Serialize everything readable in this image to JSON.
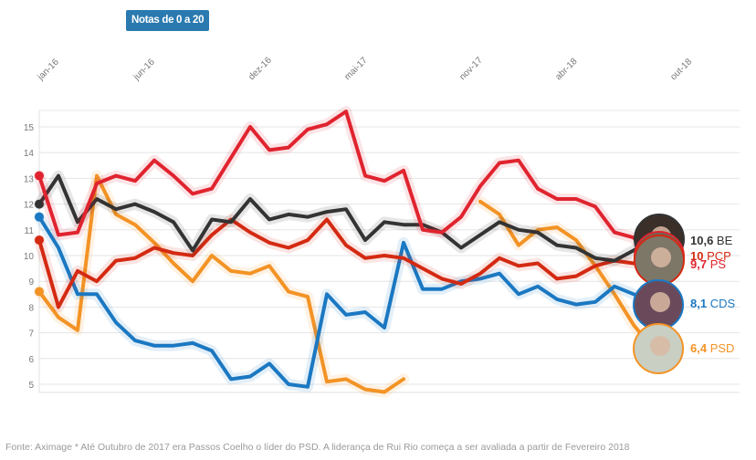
{
  "badge": {
    "label": "Notas de 0 a 20"
  },
  "footer": {
    "text": "Fonte: Aximage * Até Outubro de 2017 era Passos Coelho o líder do PSD. A liderança de Rui Rio começa a ser avaliada a partir de Fevereiro 2018"
  },
  "chart_data": {
    "type": "line",
    "title": "Notas de 0 a 20",
    "xlabel": "",
    "ylabel": "",
    "ylim": [
      5,
      15
    ],
    "yticks": [
      5,
      6,
      7,
      8,
      9,
      10,
      11,
      12,
      13,
      14,
      15
    ],
    "grid": true,
    "xtick_labels": [
      {
        "label": "jan-16",
        "index": 0
      },
      {
        "label": "jun-16",
        "index": 5
      },
      {
        "label": "dez-16",
        "index": 11
      },
      {
        "label": "mai-17",
        "index": 16
      },
      {
        "label": "nov-17",
        "index": 22
      },
      {
        "label": "abr-18",
        "index": 27
      },
      {
        "label": "out-18",
        "index": 33
      }
    ],
    "n_points": 33,
    "series": [
      {
        "name": "PS",
        "color": "#e0242f",
        "end_value": "9,7",
        "values": [
          13.1,
          10.8,
          10.9,
          12.8,
          13.1,
          12.9,
          13.7,
          13.1,
          12.4,
          12.6,
          13.8,
          15.0,
          14.1,
          14.2,
          14.9,
          15.1,
          15.6,
          13.1,
          12.9,
          13.3,
          11.0,
          10.9,
          11.5,
          12.7,
          13.6,
          13.7,
          12.6,
          12.2,
          12.2,
          11.9,
          10.9,
          10.7,
          9.7
        ]
      },
      {
        "name": "BE",
        "color": "#333333",
        "end_value": "10,6",
        "values": [
          12.0,
          13.1,
          11.3,
          12.2,
          11.8,
          12.0,
          11.7,
          11.3,
          10.2,
          11.4,
          11.3,
          12.2,
          11.4,
          11.6,
          11.5,
          11.7,
          11.8,
          10.6,
          11.3,
          11.2,
          11.2,
          10.9,
          10.3,
          10.8,
          11.3,
          11.0,
          10.9,
          10.4,
          10.3,
          9.9,
          9.8,
          10.2,
          10.6
        ]
      },
      {
        "name": "PCP",
        "color": "#d42a12",
        "end_value": "10",
        "values": [
          10.6,
          8.0,
          9.4,
          9.0,
          9.8,
          9.9,
          10.3,
          10.1,
          10.0,
          10.8,
          11.4,
          10.9,
          10.5,
          10.3,
          10.6,
          11.4,
          10.4,
          9.9,
          10.0,
          9.9,
          9.5,
          9.1,
          8.9,
          9.3,
          9.9,
          9.6,
          9.7,
          9.1,
          9.2,
          9.6,
          9.8,
          9.7,
          10.0
        ]
      },
      {
        "name": "CDS",
        "color": "#1b78c2",
        "end_value": "8,1",
        "values": [
          11.5,
          10.3,
          8.5,
          8.5,
          7.4,
          6.7,
          6.5,
          6.5,
          6.6,
          6.3,
          5.2,
          5.3,
          5.8,
          5.0,
          4.9,
          8.5,
          7.7,
          7.8,
          7.2,
          10.5,
          8.7,
          8.7,
          9.0,
          9.1,
          9.3,
          8.5,
          8.8,
          8.3,
          8.1,
          8.2,
          8.8,
          8.5,
          8.1
        ]
      },
      {
        "name": "PSD",
        "color": "#f39325",
        "end_value": "6,4",
        "values": [
          8.6,
          7.6,
          7.1,
          13.1,
          11.6,
          11.2,
          10.5,
          9.7,
          9.0,
          10.0,
          9.4,
          9.3,
          9.6,
          8.6,
          8.4,
          5.1,
          5.2,
          4.8,
          4.7,
          5.2,
          null,
          null,
          null,
          12.1,
          11.6,
          10.4,
          11.0,
          11.1,
          10.6,
          9.6,
          8.5,
          7.3,
          6.4
        ]
      }
    ],
    "end_labels": [
      {
        "series": "BE",
        "value": "10,6",
        "party": "BE"
      },
      {
        "series": "PCP",
        "value": "10",
        "party": "PCP"
      },
      {
        "series": "PS",
        "value": "9,7",
        "party": "PS"
      },
      {
        "series": "CDS",
        "value": "8,1",
        "party": "CDS"
      },
      {
        "series": "PSD",
        "value": "6,4",
        "party": "PSD"
      }
    ]
  }
}
